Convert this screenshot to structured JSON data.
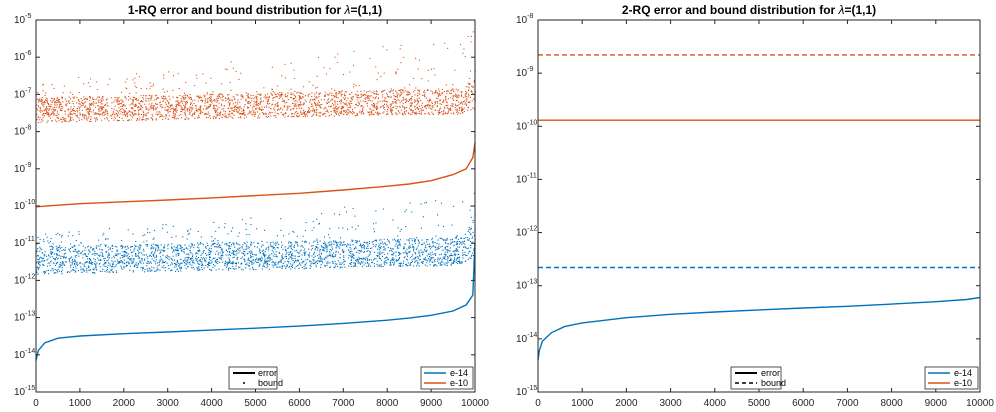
{
  "colors": {
    "blue": "#0072BD",
    "orange": "#D95319",
    "axis": "#262626",
    "background": "#ffffff"
  },
  "chart_data": [
    {
      "type": "scatter",
      "title": "1-RQ error and bound distribution for λ=(1,1)",
      "xlabel": "",
      "ylabel": "",
      "xlim": [
        0,
        10000
      ],
      "ylim": [
        1e-15,
        1e-05
      ],
      "yscale": "log",
      "xticks": [
        "0",
        "1000",
        "2000",
        "3000",
        "4000",
        "5000",
        "6000",
        "7000",
        "8000",
        "9000",
        "10000"
      ],
      "yticks": [
        {
          "base": "10",
          "exp": "-15"
        },
        {
          "base": "10",
          "exp": "-14"
        },
        {
          "base": "10",
          "exp": "-13"
        },
        {
          "base": "10",
          "exp": "-12"
        },
        {
          "base": "10",
          "exp": "-11"
        },
        {
          "base": "10",
          "exp": "-10"
        },
        {
          "base": "10",
          "exp": "-9"
        },
        {
          "base": "10",
          "exp": "-8"
        },
        {
          "base": "10",
          "exp": "-7"
        },
        {
          "base": "10",
          "exp": "-6"
        },
        {
          "base": "10",
          "exp": "-5"
        }
      ],
      "grid": false,
      "legend_style": {
        "location": "bottom-center",
        "entries": [
          {
            "label": "error",
            "style": "solid"
          },
          {
            "label": "bound",
            "style": "dot"
          }
        ]
      },
      "legend_color": {
        "location": "bottom-right",
        "entries": [
          {
            "label": "e-14",
            "color": "#0072BD"
          },
          {
            "label": "e-10",
            "color": "#D95319"
          }
        ]
      },
      "series": [
        {
          "name": "e-14 error",
          "color": "#0072BD",
          "kind": "line",
          "x": [
            1,
            50,
            200,
            500,
            1000,
            2000,
            3000,
            4000,
            5000,
            6000,
            7000,
            8000,
            8500,
            9000,
            9500,
            9800,
            9950,
            10000
          ],
          "y": [
            7e-15,
            1.3e-14,
            2.1e-14,
            2.8e-14,
            3.2e-14,
            3.7e-14,
            4.1e-14,
            4.6e-14,
            5.2e-14,
            5.9e-14,
            7e-14,
            8.5e-14,
            9.7e-14,
            1.15e-13,
            1.5e-13,
            2.2e-13,
            4e-13,
            1e-11
          ]
        },
        {
          "name": "e-10 error",
          "color": "#D95319",
          "kind": "line",
          "x": [
            1,
            500,
            1000,
            2000,
            3000,
            4000,
            5000,
            6000,
            7000,
            8000,
            8500,
            9000,
            9500,
            9800,
            9950,
            10000
          ],
          "y": [
            9.5e-11,
            1.05e-10,
            1.15e-10,
            1.3e-10,
            1.45e-10,
            1.65e-10,
            1.9e-10,
            2.2e-10,
            2.7e-10,
            3.4e-10,
            3.9e-10,
            4.8e-10,
            7e-10,
            1e-09,
            2e-09,
            5e-09
          ]
        },
        {
          "name": "e-14 bound",
          "color": "#0072BD",
          "kind": "scatter",
          "x_range": [
            0,
            10000
          ],
          "y_low": 1.5e-12,
          "y_typical": 3e-12,
          "y_high": 1e-10
        },
        {
          "name": "e-10 bound",
          "color": "#D95319",
          "kind": "scatter",
          "x_range": [
            0,
            10000
          ],
          "y_low": 1.8e-08,
          "y_typical": 3e-08,
          "y_high": 1.7e-06
        }
      ]
    },
    {
      "type": "line",
      "title": "2-RQ error and bound distribution for λ=(1,1)",
      "xlabel": "",
      "ylabel": "",
      "xlim": [
        0,
        10000
      ],
      "ylim": [
        1e-15,
        1e-08
      ],
      "yscale": "log",
      "xticks": [
        "0",
        "1000",
        "2000",
        "3000",
        "4000",
        "5000",
        "6000",
        "7000",
        "8000",
        "9000",
        "10000"
      ],
      "yticks": [
        {
          "base": "10",
          "exp": "-15"
        },
        {
          "base": "10",
          "exp": "-14"
        },
        {
          "base": "10",
          "exp": "-13"
        },
        {
          "base": "10",
          "exp": "-12"
        },
        {
          "base": "10",
          "exp": "-11"
        },
        {
          "base": "10",
          "exp": "-10"
        },
        {
          "base": "10",
          "exp": "-9"
        },
        {
          "base": "10",
          "exp": "-8"
        }
      ],
      "grid": false,
      "legend_style": {
        "location": "bottom-center",
        "entries": [
          {
            "label": "error",
            "style": "solid"
          },
          {
            "label": "bound",
            "style": "dashed"
          }
        ]
      },
      "legend_color": {
        "location": "bottom-right",
        "entries": [
          {
            "label": "e-14",
            "color": "#0072BD"
          },
          {
            "label": "e-10",
            "color": "#D95319"
          }
        ]
      },
      "series": [
        {
          "name": "e-14 error",
          "color": "#0072BD",
          "kind": "line",
          "dash": false,
          "x": [
            1,
            30,
            100,
            300,
            600,
            1000,
            2000,
            3000,
            4000,
            5000,
            6000,
            7000,
            8000,
            9000,
            9700,
            10000
          ],
          "y": [
            4e-15,
            6e-15,
            9e-15,
            1.3e-14,
            1.7e-14,
            2e-14,
            2.5e-14,
            2.9e-14,
            3.2e-14,
            3.5e-14,
            3.8e-14,
            4.1e-14,
            4.5e-14,
            5e-14,
            5.5e-14,
            6e-14
          ]
        },
        {
          "name": "e-10 error",
          "color": "#D95319",
          "kind": "line",
          "dash": false,
          "x": [
            0,
            10000
          ],
          "y": [
            1.3e-10,
            1.3e-10
          ]
        },
        {
          "name": "e-14 bound",
          "color": "#0072BD",
          "kind": "line",
          "dash": true,
          "x": [
            0,
            10000
          ],
          "y": [
            2.2e-13,
            2.2e-13
          ]
        },
        {
          "name": "e-10 bound",
          "color": "#D95319",
          "kind": "line",
          "dash": true,
          "x": [
            0,
            10000
          ],
          "y": [
            2.2e-09,
            2.2e-09
          ]
        }
      ]
    }
  ]
}
